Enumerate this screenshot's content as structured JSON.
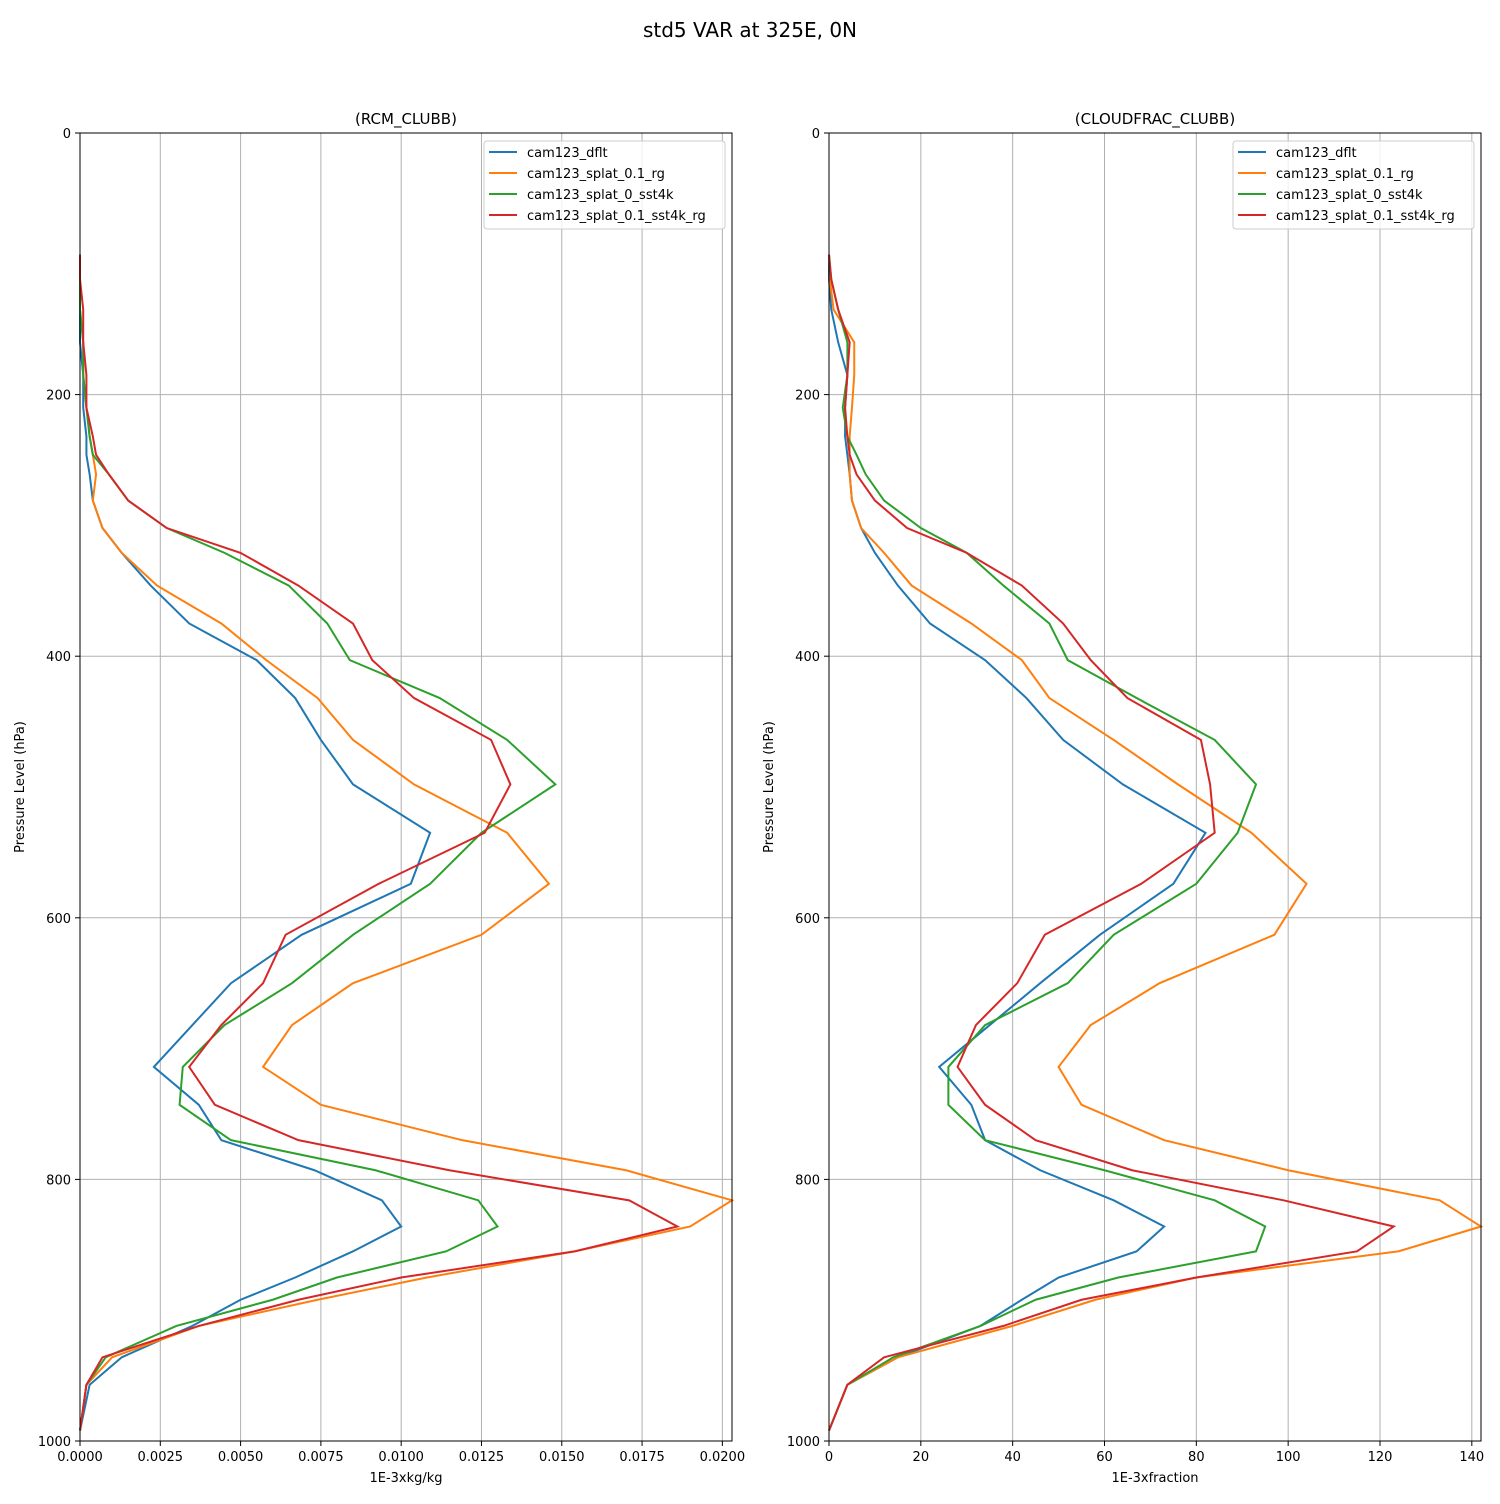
{
  "title": "std5 VAR at 325E, 0N",
  "chart_data": [
    {
      "type": "line",
      "title": "(RCM_CLUBB)",
      "xlabel": "1E-3xkg/kg",
      "ylabel": "Pressure Level (hPa)",
      "y": [
        93,
        112,
        135,
        160,
        185,
        210,
        232,
        246,
        261,
        281,
        302,
        321,
        346,
        375,
        403,
        432,
        464,
        498,
        535,
        574,
        613,
        650,
        682,
        714,
        743,
        770,
        793,
        816,
        836,
        855,
        875,
        892,
        912,
        936,
        957,
        992
      ],
      "series": [
        {
          "name": "cam123_dflt",
          "color": "#1f77b4",
          "values": [
            0,
            0,
            0,
            0,
            0.0001,
            0.0001,
            0.0002,
            0.0002,
            0.0003,
            0.0004,
            0.0007,
            0.0013,
            0.0022,
            0.0034,
            0.0055,
            0.0067,
            0.0075,
            0.0085,
            0.0109,
            0.0103,
            0.0069,
            0.0047,
            0.0035,
            0.0023,
            0.0037,
            0.0044,
            0.0073,
            0.0094,
            0.01,
            0.0085,
            0.0067,
            0.005,
            0.0035,
            0.0013,
            0.0003,
            0
          ]
        },
        {
          "name": "cam123_splat_0.1_rg",
          "color": "#ff7f0e",
          "values": [
            0,
            0,
            0,
            0.0001,
            0.0001,
            0.0002,
            0.0003,
            0.0004,
            0.0005,
            0.0004,
            0.0007,
            0.0013,
            0.0024,
            0.0044,
            0.0058,
            0.0074,
            0.0085,
            0.0104,
            0.0133,
            0.0146,
            0.0125,
            0.0085,
            0.0066,
            0.0057,
            0.0075,
            0.0119,
            0.017,
            0.0203,
            0.019,
            0.0154,
            0.0108,
            0.0074,
            0.0037,
            0.001,
            0.0002,
            0
          ]
        },
        {
          "name": "cam123_splat_0_sst4k",
          "color": "#2ca02c",
          "values": [
            0,
            0,
            0,
            0.0001,
            0.0001,
            0.0002,
            0.0003,
            0.0004,
            0.0009,
            0.0015,
            0.0027,
            0.0045,
            0.0065,
            0.0077,
            0.0084,
            0.0112,
            0.0133,
            0.0148,
            0.0125,
            0.0109,
            0.0085,
            0.0066,
            0.0045,
            0.0032,
            0.0031,
            0.0047,
            0.0092,
            0.0124,
            0.013,
            0.0114,
            0.008,
            0.006,
            0.003,
            0.0008,
            0.0002,
            0
          ]
        },
        {
          "name": "cam123_splat_0.1_sst4k_rg",
          "color": "#d62728",
          "values": [
            0,
            0,
            0.0001,
            0.0001,
            0.0002,
            0.0002,
            0.0004,
            0.0005,
            0.0009,
            0.0015,
            0.0027,
            0.005,
            0.0068,
            0.0085,
            0.0091,
            0.0104,
            0.0128,
            0.0134,
            0.0126,
            0.0093,
            0.0064,
            0.0057,
            0.0044,
            0.0034,
            0.0042,
            0.0068,
            0.0115,
            0.0171,
            0.0186,
            0.0154,
            0.01,
            0.0068,
            0.0037,
            0.0007,
            0.0002,
            0
          ]
        }
      ],
      "xlim": [
        0,
        0.0203
      ],
      "xticks": [
        {
          "value": 0,
          "label": "0.0000"
        },
        {
          "value": 0.0025,
          "label": "0.0025"
        },
        {
          "value": 0.005,
          "label": "0.0050"
        },
        {
          "value": 0.0075,
          "label": "0.0075"
        },
        {
          "value": 0.01,
          "label": "0.0100"
        },
        {
          "value": 0.0125,
          "label": "0.0125"
        },
        {
          "value": 0.015,
          "label": "0.0150"
        },
        {
          "value": 0.0175,
          "label": "0.0175"
        },
        {
          "value": 0.02,
          "label": "0.0200"
        }
      ],
      "ylim": [
        1000,
        0
      ],
      "yticks": [
        0,
        200,
        400,
        600,
        800,
        1000
      ],
      "grid": true,
      "legend": "upper right"
    },
    {
      "type": "line",
      "title": "(CLOUDFRAC_CLUBB)",
      "xlabel": "1E-3xfraction",
      "ylabel": "Pressure Level (hPa)",
      "y": [
        93,
        112,
        135,
        160,
        185,
        210,
        232,
        246,
        261,
        281,
        302,
        321,
        346,
        375,
        403,
        432,
        464,
        498,
        535,
        574,
        613,
        650,
        682,
        714,
        743,
        770,
        793,
        816,
        836,
        855,
        875,
        892,
        912,
        936,
        957,
        992
      ],
      "series": [
        {
          "name": "cam123_dflt",
          "color": "#1f77b4",
          "values": [
            0,
            0,
            0.5,
            2,
            4,
            3.5,
            3.5,
            4,
            4.5,
            5,
            7,
            10,
            15,
            22,
            34,
            43,
            51,
            64,
            82,
            75,
            59,
            46,
            35,
            24,
            31,
            34,
            46,
            62,
            73,
            67,
            50,
            42,
            33,
            15,
            4,
            0
          ]
        },
        {
          "name": "cam123_splat_0.1_rg",
          "color": "#ff7f0e",
          "values": [
            0,
            0.2,
            1,
            5.5,
            5.5,
            5,
            4.5,
            4.5,
            4.5,
            5,
            7,
            12,
            18,
            31,
            42,
            48,
            62,
            76,
            92,
            104,
            97,
            72,
            57,
            50,
            55,
            73,
            100,
            133,
            142,
            124,
            80,
            58,
            40,
            15,
            4,
            0
          ]
        },
        {
          "name": "cam123_splat_0_sst4k",
          "color": "#2ca02c",
          "values": [
            0,
            0.5,
            2,
            4,
            4,
            3,
            4,
            6,
            8,
            12,
            20,
            30,
            38,
            48,
            52,
            67,
            84,
            93,
            89,
            80,
            62,
            52,
            34,
            26,
            26,
            34,
            60,
            84,
            95,
            93,
            63,
            45,
            33,
            14,
            4,
            0
          ]
        },
        {
          "name": "cam123_splat_0.1_sst4k_rg",
          "color": "#d62728",
          "values": [
            0,
            0.5,
            2,
            4.5,
            4,
            3.5,
            4,
            4.5,
            6,
            10,
            17,
            30,
            42,
            51,
            57,
            65,
            81,
            83,
            84,
            68,
            47,
            41,
            32,
            28,
            34,
            45,
            66,
            99,
            123,
            115,
            80,
            55,
            38,
            12,
            4,
            0
          ]
        }
      ],
      "xlim": [
        0,
        142
      ],
      "xticks": [
        0,
        20,
        40,
        60,
        80,
        100,
        120,
        140
      ],
      "ylim": [
        1000,
        0
      ],
      "yticks": [
        0,
        200,
        400,
        600,
        800,
        1000
      ],
      "grid": true,
      "legend": "upper right"
    }
  ]
}
